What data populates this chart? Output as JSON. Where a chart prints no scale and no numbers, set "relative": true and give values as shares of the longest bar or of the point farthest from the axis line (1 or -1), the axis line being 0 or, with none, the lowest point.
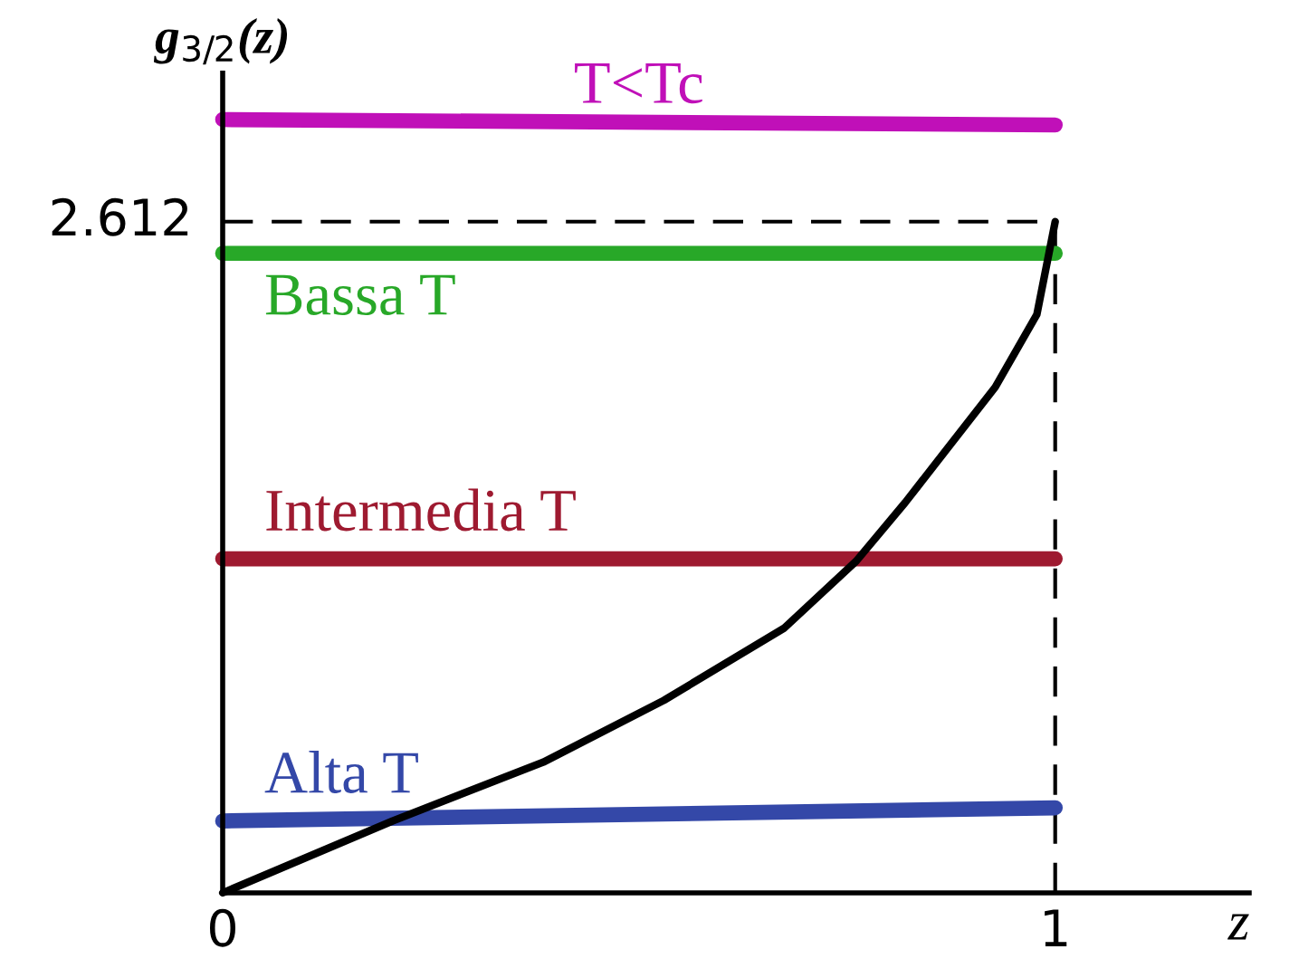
{
  "chart_data": {
    "type": "line",
    "relative": true,
    "ylabel": "g$_{3/2}$(z)",
    "xlabel": "z",
    "xlim": [
      0,
      1.233
    ],
    "xticks": [
      0,
      1
    ],
    "series": [
      {
        "name": "T<Tc",
        "color": "#c010b8",
        "x": [
          0,
          1
        ],
        "values": [
          1.0,
          0.993
        ]
      },
      {
        "name": "Bassa T",
        "color": "#28a828",
        "x": [
          0,
          1
        ],
        "values": [
          0.827,
          0.827
        ]
      },
      {
        "name": "Intermedia T",
        "color": "#9e1a30",
        "x": [
          0,
          1
        ],
        "values": [
          0.432,
          0.432
        ]
      },
      {
        "name": "Alta T",
        "color": "#3448a8",
        "x": [
          0,
          1
        ],
        "values": [
          0.093,
          0.11
        ]
      },
      {
        "color": "#000000",
        "x": [
          0,
          0.204,
          0.385,
          0.53,
          0.674,
          0.761,
          0.82,
          0.928,
          0.978,
          1.0
        ],
        "values": [
          0,
          0.093,
          0.169,
          0.249,
          0.342,
          0.429,
          0.505,
          0.654,
          0.748,
          0.868
        ]
      }
    ],
    "ref_lines": [
      {
        "axis": "y",
        "value": 0.868,
        "line_style": "dashed",
        "color": "#000000"
      },
      {
        "axis": "x",
        "value": 1,
        "line_style": "dashed",
        "color": "#000000"
      }
    ],
    "annotations": [
      {
        "text": "2.612",
        "x": 0,
        "y": 0.868
      }
    ],
    "grid": false,
    "legend": false,
    "marker": "none",
    "line_style": "solid"
  }
}
